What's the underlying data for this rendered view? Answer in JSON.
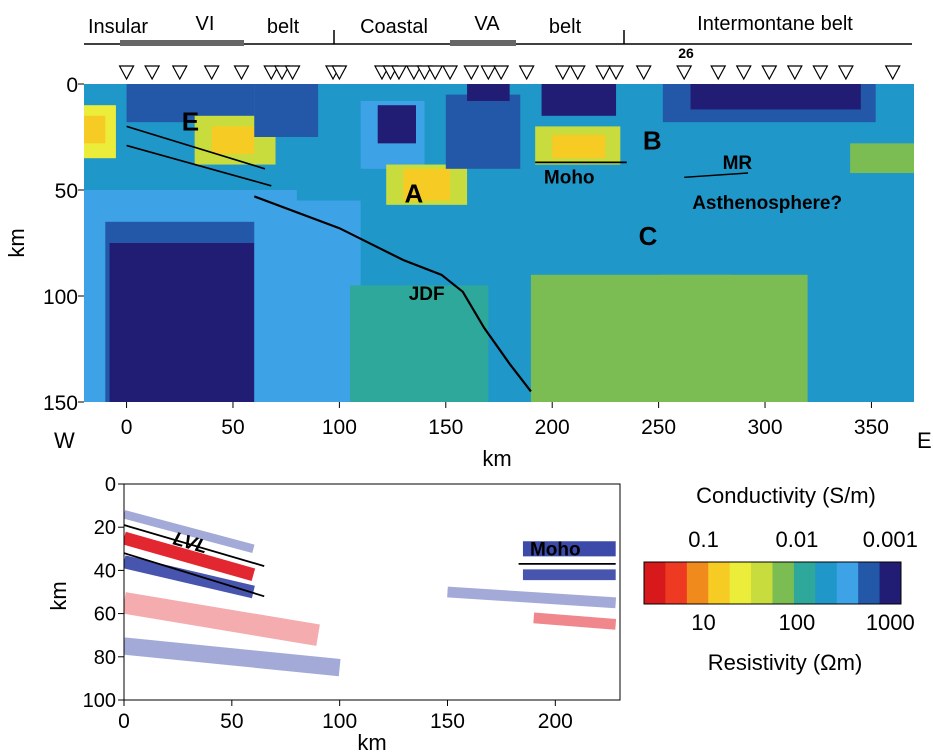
{
  "header": {
    "belts": [
      {
        "label": "Insular",
        "anchor": "start"
      },
      {
        "label": "VI",
        "anchor": "middle"
      },
      {
        "label": "belt",
        "anchor": "middle"
      },
      {
        "label": "Coastal",
        "anchor": "middle"
      },
      {
        "label": "VA",
        "anchor": "middle"
      },
      {
        "label": "belt",
        "anchor": "middle"
      },
      {
        "label": "Intermontane belt",
        "anchor": "middle"
      }
    ],
    "station_number": "26",
    "station_km": [
      0,
      12,
      25,
      40,
      54,
      68,
      73,
      78,
      97,
      100,
      120,
      124,
      128,
      135,
      140,
      145,
      152,
      162,
      170,
      176,
      188,
      205,
      212,
      224,
      230,
      243,
      262,
      278,
      290,
      302,
      314,
      326,
      338,
      360
    ]
  },
  "chart_data": [
    {
      "type": "heatmap",
      "title": "",
      "xlabel": "km",
      "ylabel": "km",
      "xlim": [
        -20,
        370
      ],
      "ylim": [
        0,
        150
      ],
      "y_inverted": true,
      "xticks": [
        0,
        50,
        100,
        150,
        200,
        250,
        300,
        350
      ],
      "yticks": [
        0,
        50,
        100,
        150
      ],
      "direction_labels": {
        "west": "W",
        "east": "E"
      },
      "features": [
        {
          "label": "E",
          "x": 30,
          "y": 22
        },
        {
          "label": "A",
          "x": 135,
          "y": 56
        },
        {
          "label": "B",
          "x": 247,
          "y": 31
        },
        {
          "label": "C",
          "x": 245,
          "y": 76
        },
        {
          "label": "MR",
          "x": 287,
          "y": 40
        },
        {
          "label": "Asthenosphere?",
          "x": 301,
          "y": 59
        },
        {
          "label": "JDF",
          "x": 141,
          "y": 102
        },
        {
          "label": "Moho",
          "x": 208,
          "y": 47
        }
      ],
      "lines": {
        "slab": [
          [
            60,
            53
          ],
          [
            100,
            68
          ],
          [
            130,
            83
          ],
          [
            148,
            90
          ],
          [
            158,
            98
          ],
          [
            168,
            115
          ],
          [
            180,
            132
          ],
          [
            190,
            145
          ]
        ],
        "upper_layer": [
          [
            0,
            20
          ],
          [
            65,
            40
          ]
        ],
        "lower_layer": [
          [
            0,
            29
          ],
          [
            68,
            48
          ]
        ],
        "moho": [
          [
            192,
            37
          ],
          [
            235,
            37
          ]
        ],
        "mr": [
          [
            262,
            44
          ],
          [
            292,
            42
          ]
        ]
      },
      "resistivity_classes_ohm_m": [
        3,
        5,
        8,
        15,
        25,
        40,
        60,
        100,
        150,
        250,
        500,
        1000
      ],
      "regions": [
        {
          "class_ohm_m": 150,
          "bounds_km": [
            -20,
            370,
            0,
            150
          ]
        },
        {
          "class_ohm_m": 250,
          "bounds_km": [
            -20,
            80,
            50,
            150
          ]
        },
        {
          "class_ohm_m": 500,
          "bounds_km": [
            -10,
            70,
            65,
            150
          ]
        },
        {
          "class_ohm_m": 1000,
          "bounds_km": [
            -8,
            60,
            75,
            150
          ]
        },
        {
          "class_ohm_m": 250,
          "bounds_km": [
            60,
            110,
            55,
            150
          ]
        },
        {
          "class_ohm_m": 100,
          "bounds_km": [
            105,
            170,
            95,
            150
          ]
        },
        {
          "class_ohm_m": 60,
          "bounds_km": [
            190,
            320,
            90,
            150
          ]
        },
        {
          "class_ohm_m": 60,
          "bounds_km": [
            250,
            285,
            90,
            125
          ]
        },
        {
          "class_ohm_m": 1000,
          "bounds_km": [
            10,
            50,
            0,
            12
          ]
        },
        {
          "class_ohm_m": 500,
          "bounds_km": [
            0,
            60,
            0,
            18
          ]
        },
        {
          "class_ohm_m": 25,
          "bounds_km": [
            -20,
            -5,
            10,
            35
          ]
        },
        {
          "class_ohm_m": 15,
          "bounds_km": [
            -20,
            -10,
            15,
            28
          ]
        },
        {
          "class_ohm_m": 40,
          "bounds_km": [
            32,
            70,
            15,
            38
          ]
        },
        {
          "class_ohm_m": 15,
          "bounds_km": [
            40,
            60,
            20,
            33
          ]
        },
        {
          "class_ohm_m": 500,
          "bounds_km": [
            60,
            90,
            0,
            25
          ]
        },
        {
          "class_ohm_m": 250,
          "bounds_km": [
            110,
            140,
            8,
            40
          ]
        },
        {
          "class_ohm_m": 1000,
          "bounds_km": [
            118,
            136,
            10,
            28
          ]
        },
        {
          "class_ohm_m": 40,
          "bounds_km": [
            122,
            160,
            38,
            57
          ]
        },
        {
          "class_ohm_m": 15,
          "bounds_km": [
            130,
            152,
            40,
            55
          ]
        },
        {
          "class_ohm_m": 500,
          "bounds_km": [
            150,
            185,
            5,
            40
          ]
        },
        {
          "class_ohm_m": 1000,
          "bounds_km": [
            160,
            180,
            0,
            8
          ]
        },
        {
          "class_ohm_m": 1000,
          "bounds_km": [
            195,
            230,
            0,
            15
          ]
        },
        {
          "class_ohm_m": 40,
          "bounds_km": [
            192,
            232,
            20,
            38
          ]
        },
        {
          "class_ohm_m": 15,
          "bounds_km": [
            200,
            225,
            24,
            35
          ]
        },
        {
          "class_ohm_m": 500,
          "bounds_km": [
            252,
            352,
            0,
            18
          ]
        },
        {
          "class_ohm_m": 1000,
          "bounds_km": [
            265,
            345,
            0,
            12
          ]
        },
        {
          "class_ohm_m": 60,
          "bounds_km": [
            340,
            370,
            28,
            42
          ]
        }
      ]
    },
    {
      "type": "heatmap",
      "title": "",
      "xlabel": "km",
      "ylabel": "km",
      "xlim": [
        0,
        230
      ],
      "ylim": [
        0,
        100
      ],
      "y_inverted": true,
      "xticks": [
        0,
        50,
        100,
        150,
        200
      ],
      "yticks": [
        0,
        20,
        40,
        60,
        80,
        100
      ],
      "features": [
        {
          "label": "LVL",
          "x": 30,
          "y": 30
        },
        {
          "label": "Moho",
          "x": 200,
          "y": 33
        }
      ],
      "lines": {
        "upper": [
          [
            0,
            19
          ],
          [
            65,
            38
          ]
        ],
        "lower": [
          [
            0,
            32
          ],
          [
            65,
            52
          ]
        ],
        "moho": [
          [
            183,
            37
          ],
          [
            228,
            37
          ]
        ]
      },
      "bands": [
        {
          "tone": "red",
          "strength": 0.9,
          "from": [
            0,
            25
          ],
          "to": [
            60,
            42
          ],
          "width_km": 6
        },
        {
          "tone": "blue",
          "strength": 0.8,
          "from": [
            0,
            36
          ],
          "to": [
            60,
            50
          ],
          "width_km": 6
        },
        {
          "tone": "blue",
          "strength": 0.4,
          "from": [
            0,
            14
          ],
          "to": [
            60,
            30
          ],
          "width_km": 4
        },
        {
          "tone": "red",
          "strength": 0.35,
          "from": [
            0,
            55
          ],
          "to": [
            90,
            70
          ],
          "width_km": 10
        },
        {
          "tone": "blue",
          "strength": 0.4,
          "from": [
            0,
            75
          ],
          "to": [
            100,
            85
          ],
          "width_km": 8
        },
        {
          "tone": "blue",
          "strength": 0.85,
          "from": [
            185,
            30
          ],
          "to": [
            228,
            30
          ],
          "width_km": 7
        },
        {
          "tone": "blue",
          "strength": 0.8,
          "from": [
            185,
            42
          ],
          "to": [
            228,
            42
          ],
          "width_km": 5
        },
        {
          "tone": "red",
          "strength": 0.5,
          "from": [
            190,
            62
          ],
          "to": [
            228,
            65
          ],
          "width_km": 5
        },
        {
          "tone": "blue",
          "strength": 0.4,
          "from": [
            150,
            50
          ],
          "to": [
            228,
            55
          ],
          "width_km": 5
        }
      ]
    }
  ],
  "colorbar": {
    "title_top": "Conductivity (S/m)",
    "title_bottom": "Resistivity (Ωm)",
    "top_ticks": [
      {
        "label": "0.1",
        "value": 10
      },
      {
        "label": "0.01",
        "value": 100
      },
      {
        "label": "0.001",
        "value": 1000
      }
    ],
    "bottom_ticks": [
      {
        "label": "10",
        "value": 10
      },
      {
        "label": "100",
        "value": 100
      },
      {
        "label": "1000",
        "value": 1000
      }
    ],
    "colors": [
      "#d7191c",
      "#ee3a22",
      "#f08a1c",
      "#f6cb24",
      "#ecec3a",
      "#c8dc3e",
      "#7cbd53",
      "#2ea89a",
      "#1f97c9",
      "#3ea3e6",
      "#2357a8",
      "#221d74"
    ]
  }
}
